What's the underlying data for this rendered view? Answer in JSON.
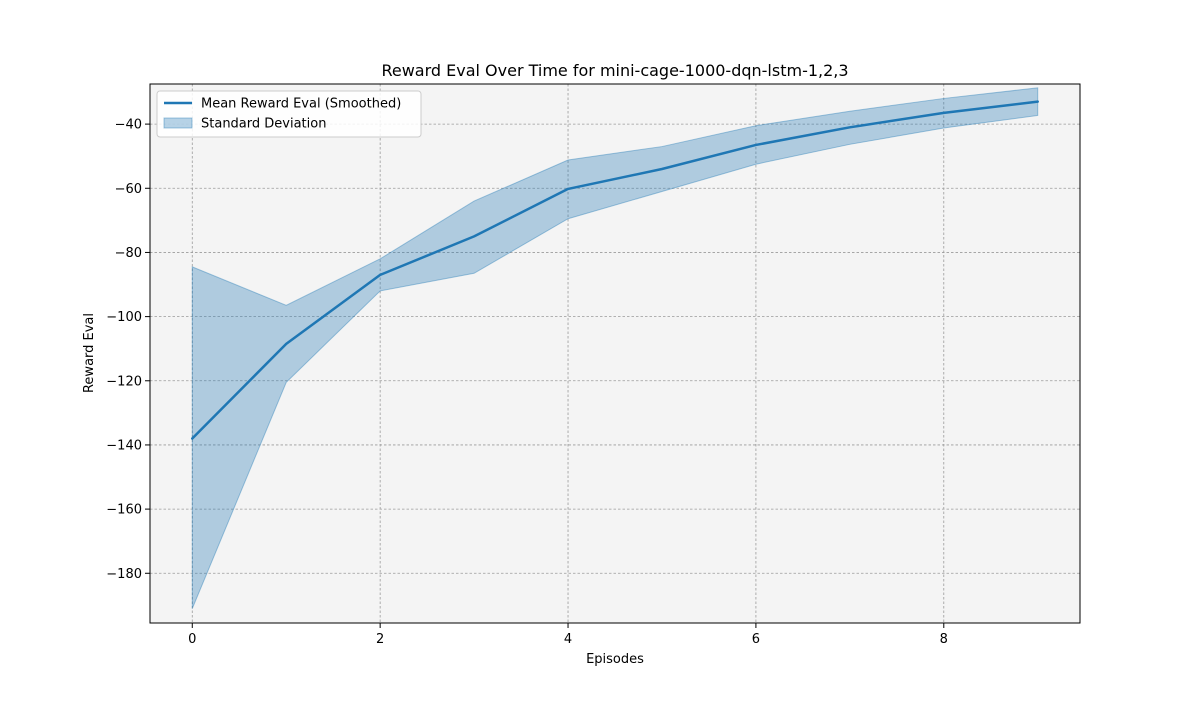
{
  "chart_data": {
    "type": "line",
    "title": "Reward Eval Over Time for mini-cage-1000-dqn-lstm-1,2,3",
    "xlabel": "Episodes",
    "ylabel": "Reward Eval",
    "xlim": [
      -0.45,
      9.45
    ],
    "ylim": [
      -195.5,
      -27.5
    ],
    "xticks": [
      0,
      2,
      4,
      6,
      8
    ],
    "yticks": [
      -180,
      -160,
      -140,
      -120,
      -100,
      -80,
      -60,
      -40
    ],
    "grid": true,
    "legend_position": "top-left",
    "series": [
      {
        "name": "Mean Reward Eval (Smoothed)",
        "kind": "line",
        "color": "#1f77b4",
        "x": [
          0,
          1,
          2,
          3,
          4,
          5,
          6,
          7,
          8,
          9
        ],
        "y": [
          -138,
          -108.5,
          -87,
          -75,
          -60.2,
          -54,
          -46.5,
          -41,
          -36.5,
          -33
        ]
      },
      {
        "name": "Standard Deviation",
        "kind": "band",
        "color": "#1f77b4",
        "x": [
          0,
          1,
          2,
          3,
          4,
          5,
          6,
          7,
          8,
          9
        ],
        "upper": [
          -84.5,
          -96.5,
          -82,
          -64,
          -51.2,
          -47,
          -40.5,
          -36,
          -32,
          -28.7
        ],
        "lower": [
          -191,
          -120.5,
          -92,
          -86.5,
          -69.5,
          -61,
          -52.5,
          -46.3,
          -41.2,
          -37.3
        ]
      }
    ]
  }
}
